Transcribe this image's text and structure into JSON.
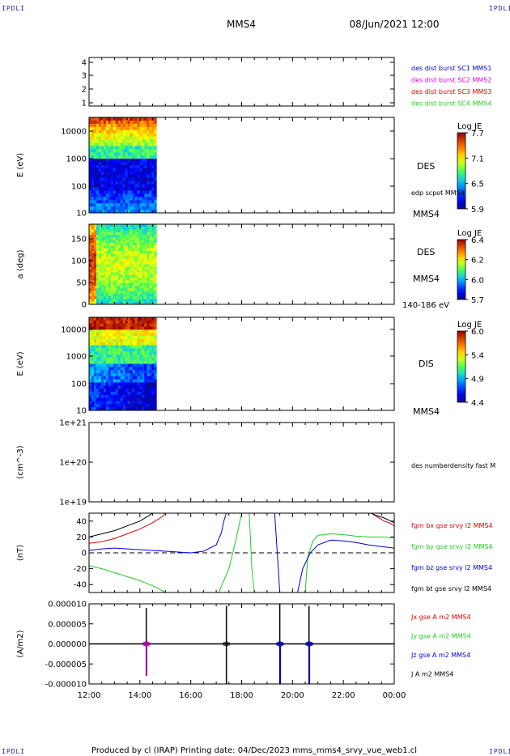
{
  "corner_marks": {
    "top_left": "IPDLI",
    "top_right": "IPDLI",
    "bottom_left": "IPDLI",
    "bottom_right": "IPDLI"
  },
  "header": {
    "spacecraft": "MMS4",
    "datetime": "08/Jun/2021 12:00"
  },
  "footer": {
    "text": "Produced by cl (IRAP)   Printing date: 04/Dec/2023   mms_mms4_srvy_vue_web1.cl"
  },
  "time_axis": {
    "ticks": [
      "12:00",
      "14:00",
      "16:00",
      "18:00",
      "20:00",
      "22:00",
      "00:00"
    ],
    "start_hour": 12,
    "end_hour": 24
  },
  "colors": {
    "black": "#000000",
    "red": "#e00000",
    "green": "#22cc22",
    "blue": "#0000e0",
    "magenta": "#e000e0"
  },
  "chart_data": [
    {
      "type": "line",
      "panel": "distribution",
      "yticks": [
        "4",
        "3",
        "2",
        "1"
      ],
      "ylim": [
        0.5,
        4.5
      ],
      "legend": [
        {
          "text": "des dist burst SC1 MMS1",
          "color": "#0000e0"
        },
        {
          "text": "des dist burst SC2 MMS2",
          "color": "#e000e0"
        },
        {
          "text": "des dist burst SC3 MMS3",
          "color": "#e00000"
        },
        {
          "text": "des dist burst SC4 MMS4",
          "color": "#22cc22"
        }
      ],
      "series": []
    },
    {
      "type": "heatmap",
      "panel": "des_energy",
      "ylabel": "E (eV)",
      "yscale": "log",
      "yticks": [
        "10000",
        "1000",
        "100",
        "10"
      ],
      "ylim": [
        10,
        30000
      ],
      "data_hours": [
        12.0,
        14.65
      ],
      "right_labels": {
        "instrument": "DES",
        "overlay": "edp scpot MMS4",
        "spacecraft": "MMS4"
      },
      "colorbar": {
        "title": "Log JE",
        "ticks": [
          "7.7",
          "7.1",
          "6.5",
          "5.9"
        ],
        "range": [
          5.9,
          7.7
        ]
      }
    },
    {
      "type": "heatmap",
      "panel": "des_pitch",
      "ylabel": "a (deg)",
      "yticks": [
        "150",
        "100",
        "50",
        "0"
      ],
      "ylim": [
        0,
        180
      ],
      "data_hours": [
        12.0,
        14.65
      ],
      "right_labels": {
        "instrument": "DES",
        "spacecraft": "MMS4",
        "energy": "140-186 eV"
      },
      "colorbar": {
        "title": "Log JE",
        "ticks": [
          "6.4",
          "6.2",
          "6.0",
          "5.7"
        ],
        "range": [
          5.7,
          6.4
        ]
      }
    },
    {
      "type": "heatmap",
      "panel": "dis_energy",
      "ylabel": "E (eV)",
      "yscale": "log",
      "yticks": [
        "10000",
        "1000",
        "100",
        "10"
      ],
      "ylim": [
        10,
        30000
      ],
      "data_hours": [
        12.0,
        14.65
      ],
      "right_labels": {
        "instrument": "DIS",
        "spacecraft": "MMS4"
      },
      "colorbar": {
        "title": "Log JE",
        "ticks": [
          "6.0",
          "5.4",
          "4.9",
          "4.4"
        ],
        "range": [
          4.4,
          6.0
        ]
      }
    },
    {
      "type": "line",
      "panel": "density",
      "ylabel": "(cm^-3)",
      "yscale": "log",
      "yticks": [
        "1e+21",
        "1e+20",
        "1e+19"
      ],
      "ylim": [
        1e+19,
        1e+21
      ],
      "legend": [
        {
          "text": "des numberdensity fast M",
          "color": "#000000"
        }
      ],
      "series": []
    },
    {
      "type": "line",
      "panel": "fgm",
      "ylabel": "(nT)",
      "yticks": [
        "40",
        "20",
        "0",
        "-20",
        "-40"
      ],
      "ylim": [
        -50,
        50
      ],
      "zero_line": true,
      "legend": [
        {
          "text": "fgm bx gse srvy l2 MMS4",
          "color": "#e00000"
        },
        {
          "text": "fgm by gse srvy l2 MMS4",
          "color": "#22cc22"
        },
        {
          "text": "fgm bz gse srvy l2 MMS4",
          "color": "#0000e0"
        },
        {
          "text": "fgm bt gse srvy l2 MMS4",
          "color": "#000000"
        }
      ],
      "series": [
        {
          "key": "bx",
          "color": "#e00000",
          "segments": [
            [
              [
                12.0,
                12.0
              ],
              [
                12.5,
                14.0
              ],
              [
                13.0,
                18.0
              ],
              [
                13.5,
                24.0
              ],
              [
                14.0,
                30.0
              ],
              [
                14.5,
                38.0
              ],
              [
                14.9,
                46.0
              ],
              [
                15.0,
                50.0
              ]
            ],
            [
              [
                23.1,
                50.0
              ],
              [
                23.3,
                46.0
              ],
              [
                23.6,
                40.0
              ],
              [
                23.8,
                38.0
              ],
              [
                24.0,
                34.0
              ]
            ]
          ]
        },
        {
          "key": "by",
          "color": "#22cc22",
          "segments": [
            [
              [
                12.0,
                -16.0
              ],
              [
                12.5,
                -20.0
              ],
              [
                13.0,
                -25.0
              ],
              [
                13.5,
                -30.0
              ],
              [
                14.0,
                -35.0
              ],
              [
                14.6,
                -43.0
              ],
              [
                15.0,
                -50.0
              ]
            ],
            [
              [
                17.1,
                -50.0
              ],
              [
                17.5,
                -20.0
              ],
              [
                17.8,
                20.0
              ],
              [
                18.0,
                50.0
              ]
            ],
            [
              [
                18.3,
                50.0
              ],
              [
                18.4,
                -20.0
              ],
              [
                18.5,
                -50.0
              ]
            ],
            [
              [
                20.5,
                -50.0
              ],
              [
                20.6,
                -5.0
              ],
              [
                20.8,
                15.0
              ],
              [
                21.0,
                22.0
              ],
              [
                21.5,
                24.0
              ],
              [
                22.0,
                23.0
              ],
              [
                22.5,
                21.0
              ],
              [
                23.0,
                20.0
              ],
              [
                23.5,
                20.0
              ],
              [
                24.0,
                19.0
              ]
            ]
          ]
        },
        {
          "key": "bz",
          "color": "#0000e0",
          "segments": [
            [
              [
                12.0,
                3.0
              ],
              [
                12.5,
                5.0
              ],
              [
                13.0,
                6.0
              ],
              [
                13.5,
                5.0
              ],
              [
                14.0,
                4.0
              ],
              [
                14.5,
                3.0
              ],
              [
                15.0,
                2.0
              ],
              [
                15.5,
                1.0
              ],
              [
                16.0,
                0.0
              ],
              [
                16.5,
                2.0
              ],
              [
                17.0,
                10.0
              ],
              [
                17.2,
                25.0
              ],
              [
                17.3,
                40.0
              ],
              [
                17.4,
                50.0
              ]
            ],
            [
              [
                19.3,
                50.0
              ],
              [
                19.4,
                0.0
              ],
              [
                19.5,
                -50.0
              ]
            ],
            [
              [
                20.2,
                -50.0
              ],
              [
                20.4,
                -20.0
              ],
              [
                20.7,
                0.0
              ],
              [
                21.0,
                10.0
              ],
              [
                21.5,
                16.0
              ],
              [
                22.0,
                15.0
              ],
              [
                22.5,
                13.0
              ],
              [
                23.0,
                10.0
              ],
              [
                23.5,
                8.0
              ],
              [
                24.0,
                6.0
              ]
            ]
          ]
        },
        {
          "key": "bt",
          "color": "#000000",
          "segments": [
            [
              [
                12.0,
                20.0
              ],
              [
                12.5,
                24.0
              ],
              [
                13.0,
                28.0
              ],
              [
                13.5,
                34.0
              ],
              [
                14.0,
                40.0
              ],
              [
                14.3,
                46.0
              ],
              [
                14.5,
                50.0
              ]
            ],
            [
              [
                23.1,
                50.0
              ],
              [
                23.3,
                47.0
              ],
              [
                23.6,
                44.0
              ],
              [
                23.8,
                41.0
              ],
              [
                24.0,
                38.0
              ]
            ]
          ]
        }
      ]
    },
    {
      "type": "line",
      "panel": "current",
      "ylabel": "(A/m2)",
      "yticks": [
        "0.000010",
        "0.000005",
        "0.000000",
        "-0.000005",
        "-0.000010"
      ],
      "ylim": [
        -1e-05,
        1e-05
      ],
      "legend": [
        {
          "text": "Jx gse A m2 MMS4",
          "color": "#e00000"
        },
        {
          "text": "Jy gse A m2 MMS4",
          "color": "#22cc22"
        },
        {
          "text": "Jz gse A m2 MMS4",
          "color": "#0000e0"
        },
        {
          "text": "J A m2 MMS4",
          "color": "#000000"
        }
      ],
      "spikes": [
        {
          "t": 14.25,
          "min": -8e-06,
          "max": 9e-06,
          "color": "#000000"
        },
        {
          "t": 14.27,
          "min": -8e-06,
          "max": 2e-07,
          "color": "#e000e0"
        },
        {
          "t": 17.4,
          "min": -1e-05,
          "max": 9.5e-06,
          "color": "#000000"
        },
        {
          "t": 19.5,
          "min": -1e-05,
          "max": 1e-05,
          "color": "#000000"
        },
        {
          "t": 19.52,
          "min": -1e-05,
          "max": 1e-07,
          "color": "#0000e0"
        },
        {
          "t": 20.65,
          "min": -1e-05,
          "max": 9.5e-06,
          "color": "#000000"
        },
        {
          "t": 20.67,
          "min": -1e-05,
          "max": 1e-07,
          "color": "#0000e0"
        }
      ]
    }
  ]
}
